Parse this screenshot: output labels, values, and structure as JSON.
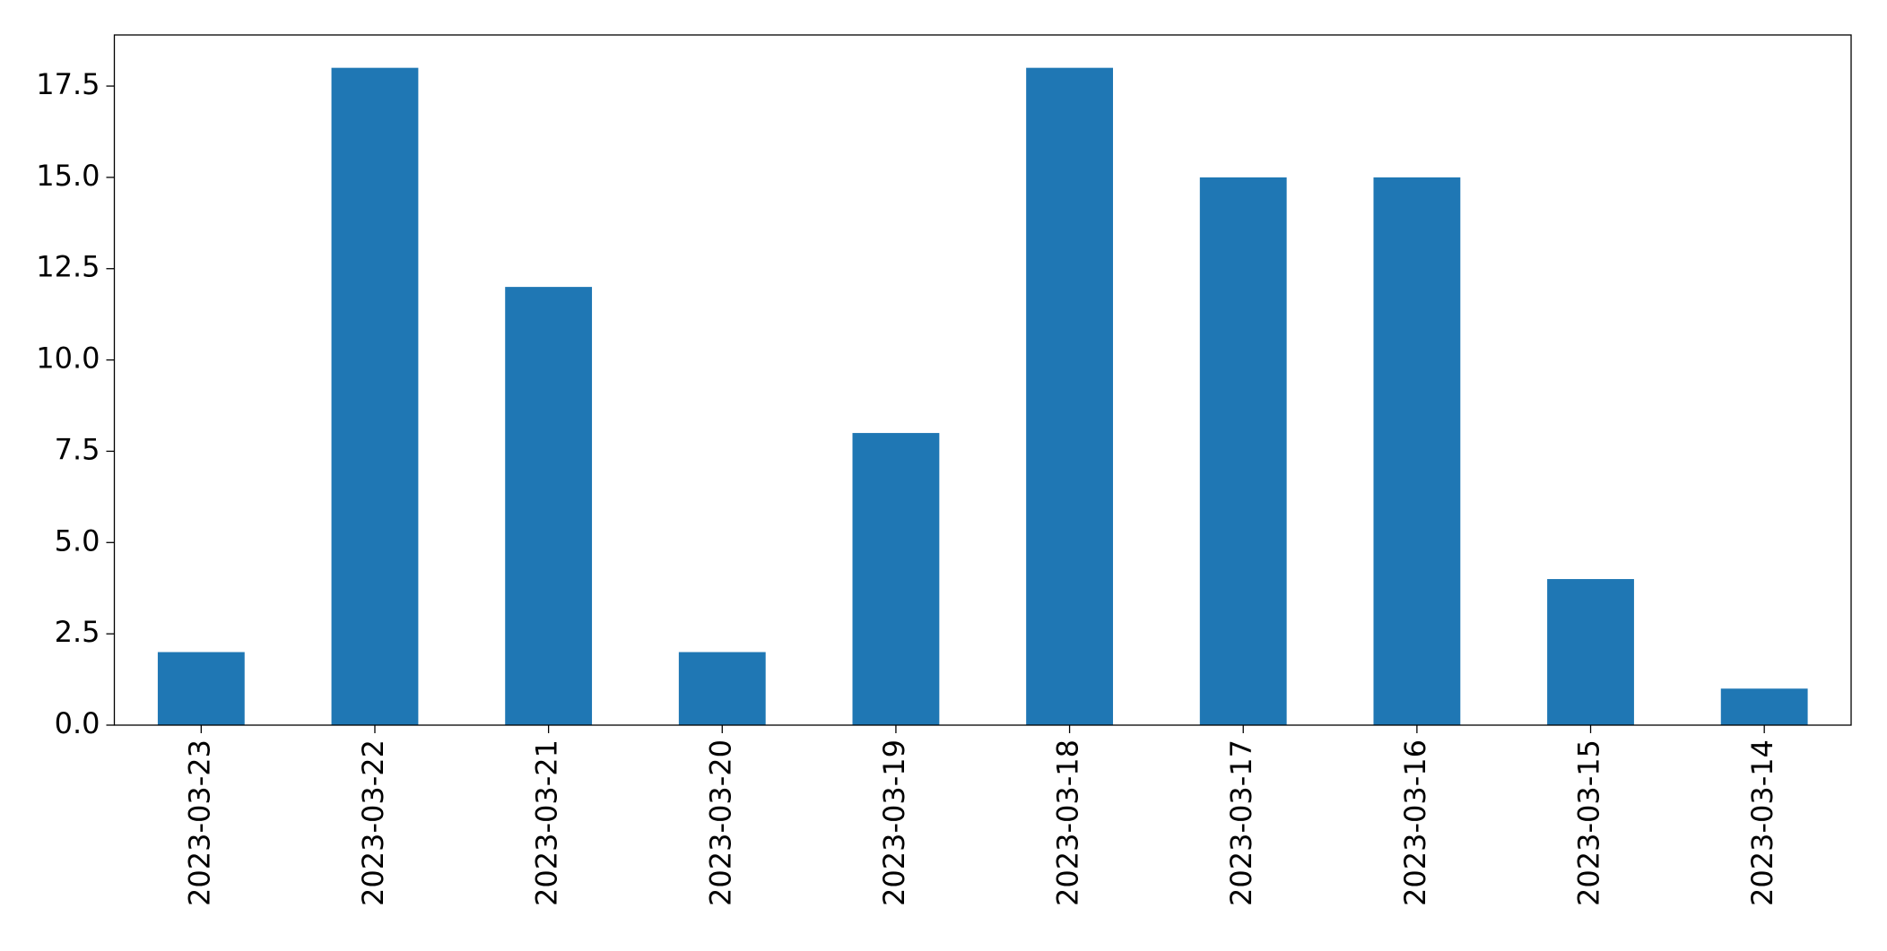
{
  "chart_data": {
    "type": "bar",
    "categories": [
      "2023-03-23",
      "2023-03-22",
      "2023-03-21",
      "2023-03-20",
      "2023-03-19",
      "2023-03-18",
      "2023-03-17",
      "2023-03-16",
      "2023-03-15",
      "2023-03-14"
    ],
    "values": [
      2,
      18,
      12,
      2,
      8,
      18,
      15,
      15,
      4,
      1
    ],
    "color": "#1f77b4",
    "ylim": [
      0,
      18.9
    ],
    "yticks": [
      {
        "value": 0,
        "label": "0.0"
      },
      {
        "value": 2.5,
        "label": "2.5"
      },
      {
        "value": 5,
        "label": "5.0"
      },
      {
        "value": 7.5,
        "label": "7.5"
      },
      {
        "value": 10,
        "label": "10.0"
      },
      {
        "value": 12.5,
        "label": "12.5"
      },
      {
        "value": 15,
        "label": "15.0"
      },
      {
        "value": 17.5,
        "label": "17.5"
      }
    ]
  }
}
